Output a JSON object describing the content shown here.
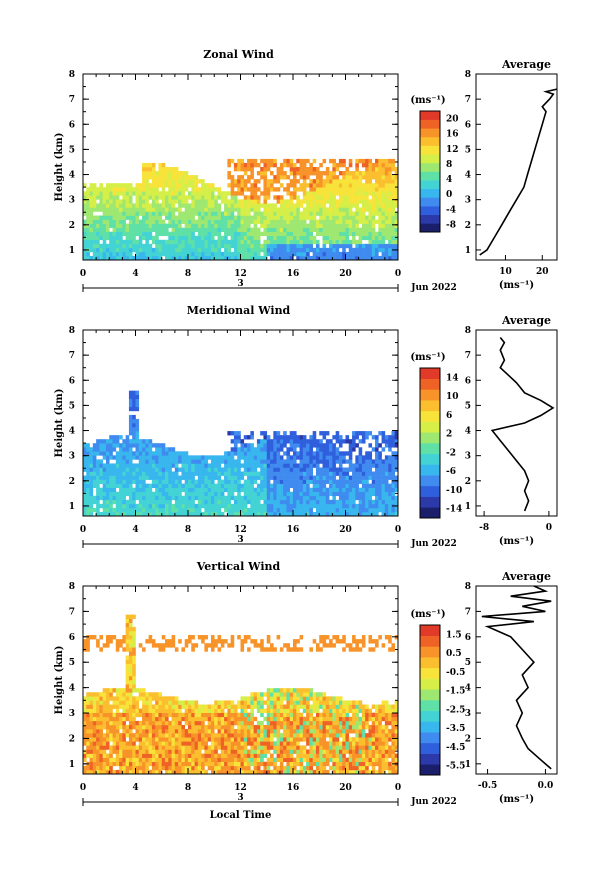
{
  "chart_data": [
    {
      "type": "heatmap",
      "title": "Zonal Wind",
      "xlabel": "",
      "ylabel": "Height (km)",
      "xlim": [
        0,
        24
      ],
      "ylim": [
        0.6,
        8
      ],
      "xticks": [
        "0",
        "4",
        "8",
        "12",
        "16",
        "20",
        "0"
      ],
      "yticks": [
        "1",
        "2",
        "3",
        "4",
        "5",
        "6",
        "7",
        "8"
      ],
      "date_label": "3",
      "month_label": "Jun 2022",
      "unit": "(ms⁻¹)",
      "colorbar": {
        "ticks": [
          "20",
          "16",
          "12",
          "8",
          "4",
          "0",
          "-4",
          "-8"
        ],
        "min": -10,
        "max": 22
      },
      "profile": {
        "title": "Average",
        "xlabel": "(ms⁻¹)",
        "xticks": [
          "10",
          "20"
        ],
        "xlim": [
          2,
          24
        ],
        "points": [
          [
            3,
            0.8
          ],
          [
            5,
            1.0
          ],
          [
            7,
            1.5
          ],
          [
            9,
            2.0
          ],
          [
            11,
            2.5
          ],
          [
            13,
            3.0
          ],
          [
            15,
            3.5
          ],
          [
            16,
            4.0
          ],
          [
            17,
            4.5
          ],
          [
            18,
            5.0
          ],
          [
            19,
            5.5
          ],
          [
            20,
            6.0
          ],
          [
            21,
            6.5
          ],
          [
            20,
            6.7
          ],
          [
            22,
            7.0
          ],
          [
            23,
            7.2
          ],
          [
            21,
            7.3
          ],
          [
            24,
            7.4
          ]
        ]
      }
    },
    {
      "type": "heatmap",
      "title": "Meridional Wind",
      "xlabel": "",
      "ylabel": "Height (km)",
      "xlim": [
        0,
        24
      ],
      "ylim": [
        0.6,
        8
      ],
      "xticks": [
        "0",
        "4",
        "8",
        "12",
        "16",
        "20",
        "0"
      ],
      "yticks": [
        "1",
        "2",
        "3",
        "4",
        "5",
        "6",
        "7",
        "8"
      ],
      "date_label": "3",
      "month_label": "Jun 2022",
      "unit": "(ms⁻¹)",
      "colorbar": {
        "ticks": [
          "14",
          "10",
          "6",
          "2",
          "-2",
          "-6",
          "-10",
          "-14"
        ],
        "min": -16,
        "max": 16
      },
      "profile": {
        "title": "Average",
        "xlabel": "(ms⁻¹)",
        "xticks": [
          "-8",
          "0"
        ],
        "xlim": [
          -9,
          1
        ],
        "points": [
          [
            -3,
            0.8
          ],
          [
            -2.5,
            1.2
          ],
          [
            -3,
            1.6
          ],
          [
            -2.5,
            2.0
          ],
          [
            -3,
            2.4
          ],
          [
            -4,
            2.8
          ],
          [
            -5,
            3.2
          ],
          [
            -6,
            3.6
          ],
          [
            -7,
            4.0
          ],
          [
            -3,
            4.3
          ],
          [
            -1,
            4.6
          ],
          [
            0.5,
            4.9
          ],
          [
            -1,
            5.2
          ],
          [
            -3,
            5.5
          ],
          [
            -4,
            5.9
          ],
          [
            -5,
            6.2
          ],
          [
            -6,
            6.5
          ],
          [
            -5.5,
            6.8
          ],
          [
            -6,
            7.2
          ],
          [
            -5.5,
            7.5
          ],
          [
            -6,
            7.7
          ]
        ]
      }
    },
    {
      "type": "heatmap",
      "title": "Vertical Wind",
      "xlabel": "Local Time",
      "ylabel": "Height (km)",
      "xlim": [
        0,
        24
      ],
      "ylim": [
        0.6,
        8
      ],
      "xticks": [
        "0",
        "4",
        "8",
        "12",
        "16",
        "20",
        "0"
      ],
      "yticks": [
        "1",
        "2",
        "3",
        "4",
        "5",
        "6",
        "7",
        "8"
      ],
      "date_label": "3",
      "month_label": "Jun 2022",
      "unit": "(ms⁻¹)",
      "colorbar": {
        "ticks": [
          "1.5",
          "0.5",
          "-0.5",
          "-1.5",
          "-2.5",
          "-3.5",
          "-4.5",
          "-5.5"
        ],
        "min": -6,
        "max": 2
      },
      "profile": {
        "title": "Average",
        "xlabel": "(ms⁻¹)",
        "xticks": [
          "-0.5",
          "0.0"
        ],
        "xlim": [
          -0.6,
          0.1
        ],
        "points": [
          [
            0.05,
            0.8
          ],
          [
            -0.05,
            1.2
          ],
          [
            -0.15,
            1.6
          ],
          [
            -0.2,
            2.0
          ],
          [
            -0.25,
            2.5
          ],
          [
            -0.2,
            3.0
          ],
          [
            -0.25,
            3.5
          ],
          [
            -0.15,
            4.0
          ],
          [
            -0.2,
            4.5
          ],
          [
            -0.1,
            5.0
          ],
          [
            -0.2,
            5.5
          ],
          [
            -0.3,
            6.0
          ],
          [
            -0.5,
            6.4
          ],
          [
            -0.1,
            6.6
          ],
          [
            -0.55,
            6.8
          ],
          [
            0.0,
            7.0
          ],
          [
            -0.2,
            7.2
          ],
          [
            0.05,
            7.4
          ],
          [
            -0.3,
            7.6
          ],
          [
            0.0,
            7.8
          ],
          [
            -0.1,
            8.0
          ]
        ]
      }
    }
  ]
}
